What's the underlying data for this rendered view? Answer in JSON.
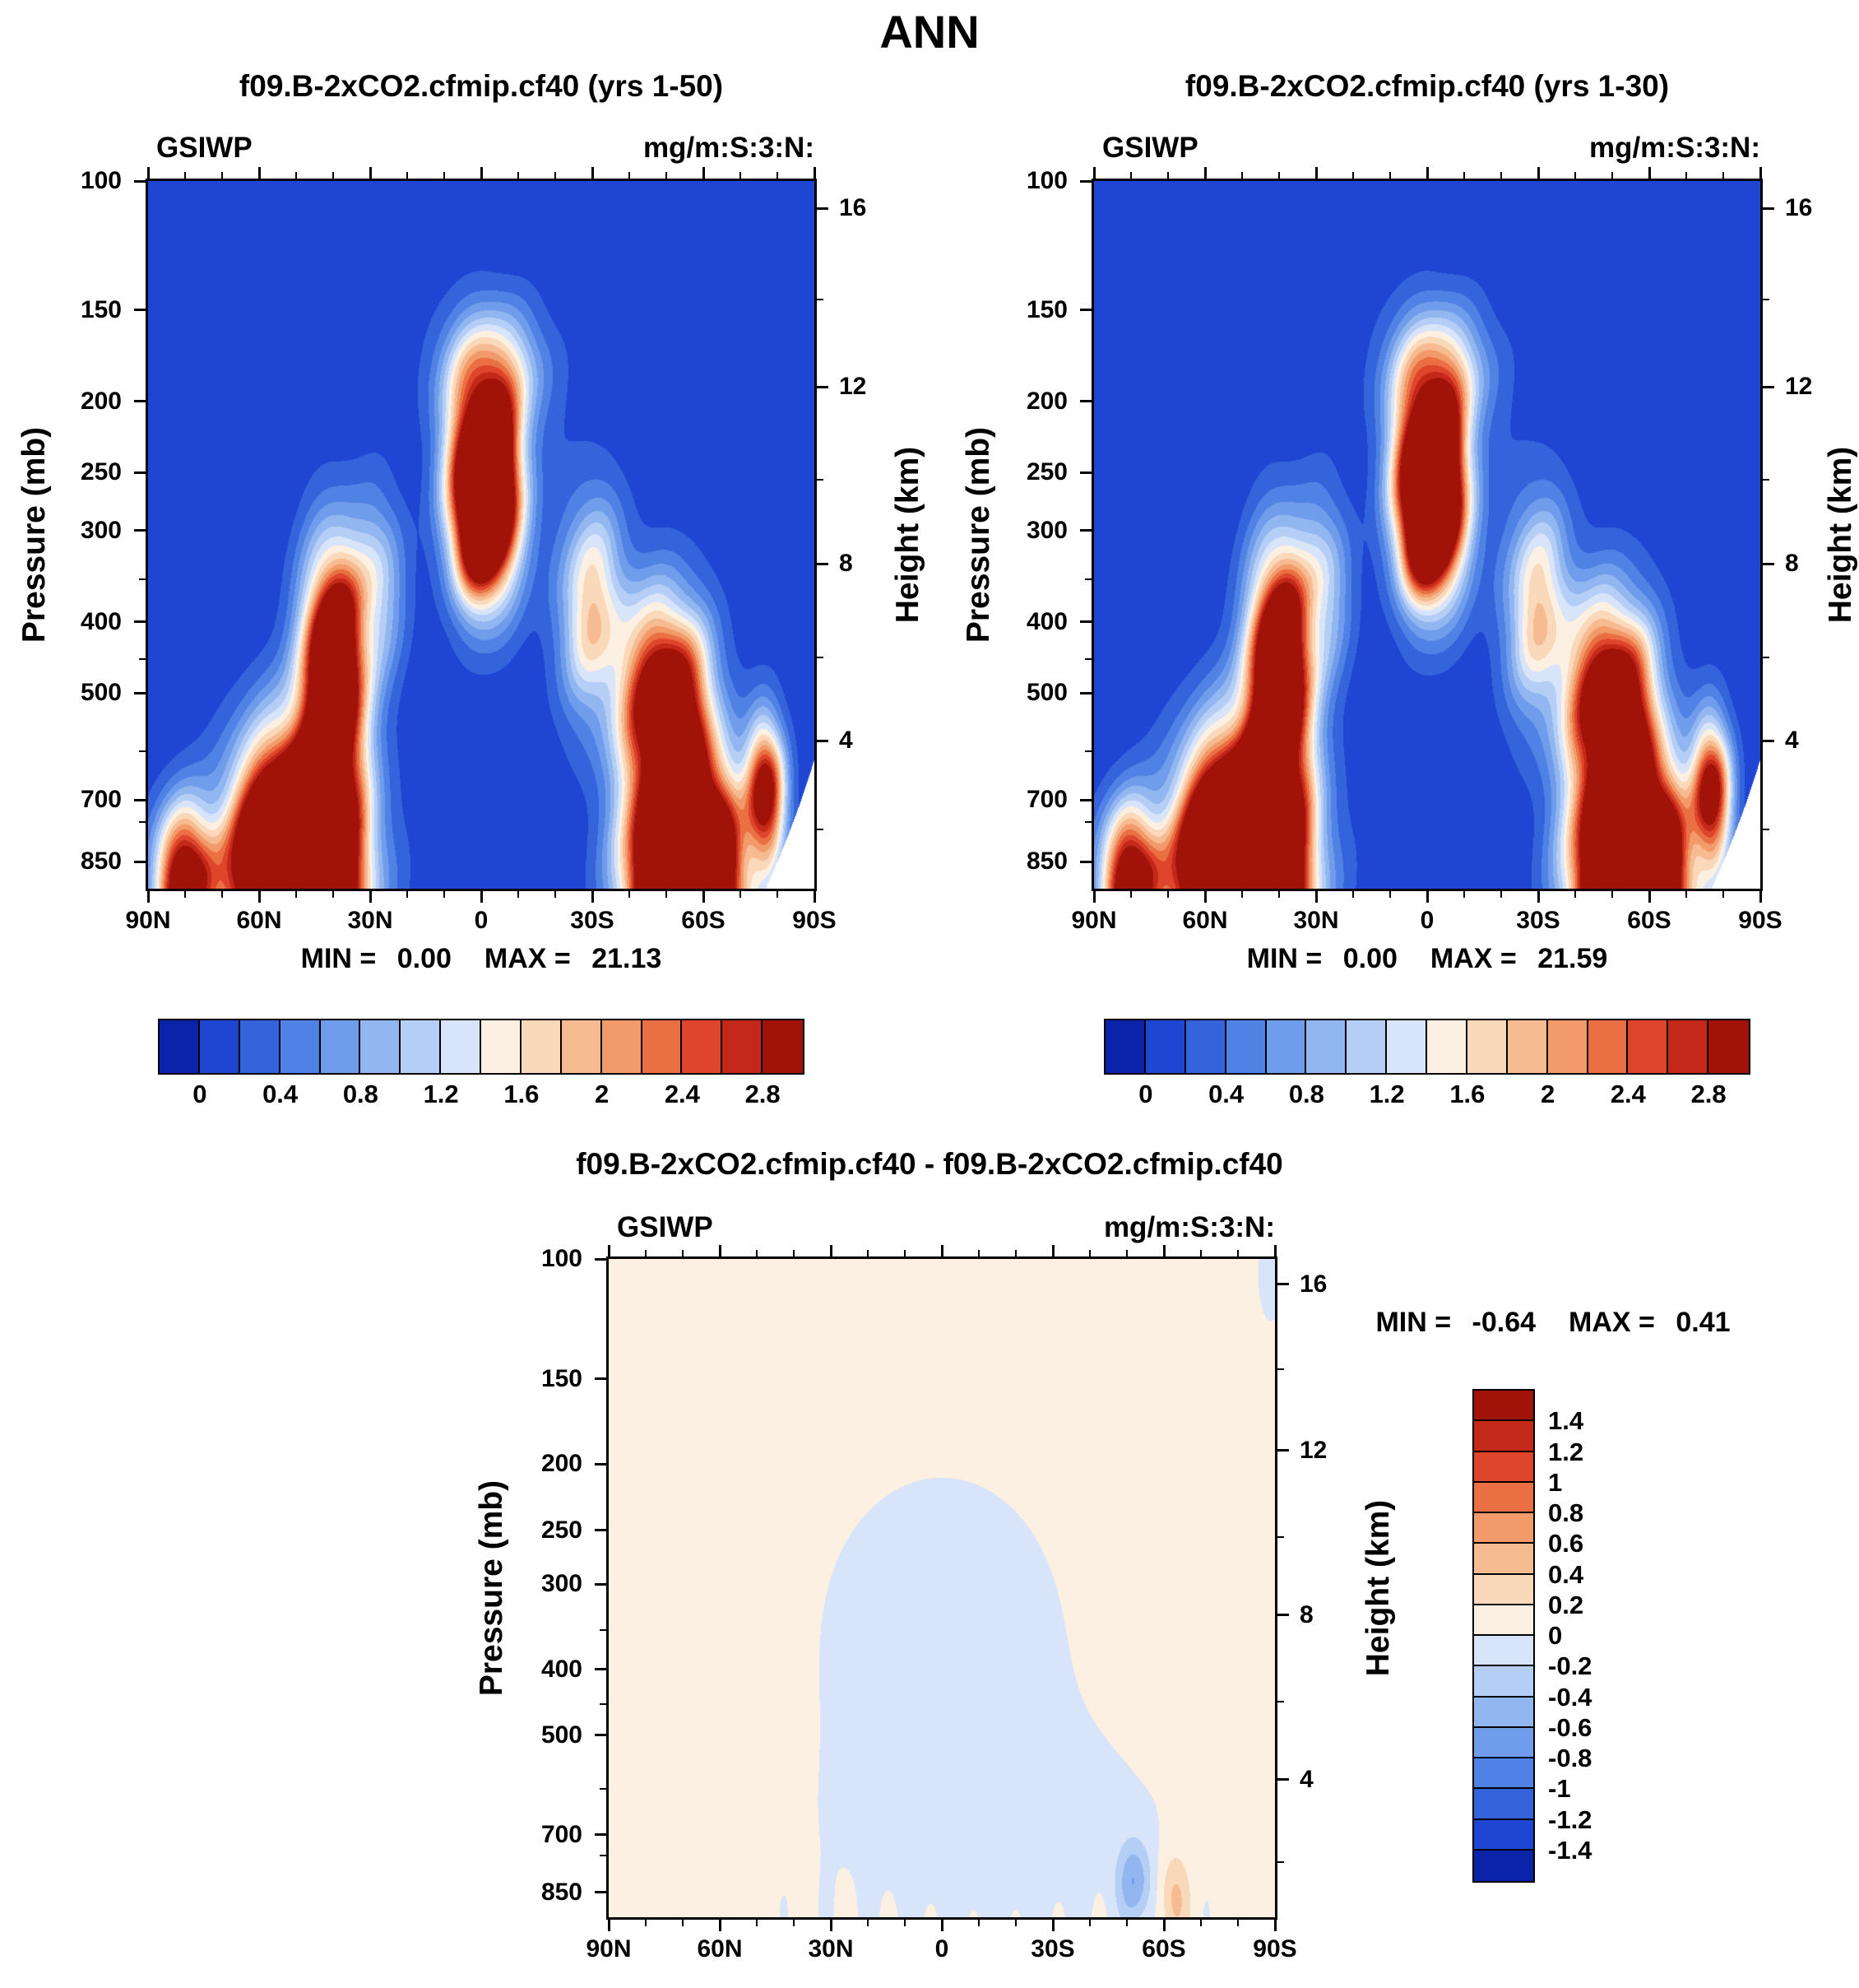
{
  "figure_title": "ANN",
  "axis": {
    "pressure_label": "Pressure (mb)",
    "height_label": "Height (km)",
    "pressure_range": [
      100,
      925
    ],
    "pressure_ticks": [
      100,
      150,
      200,
      250,
      300,
      400,
      500,
      700,
      850
    ],
    "pressure_minor_ticks": [
      350,
      450,
      600,
      750
    ],
    "height_ticks_km": [
      "16",
      "12",
      "8",
      "4"
    ],
    "height_ticks_p": [
      109,
      191,
      333,
      581
    ],
    "height_minor_ticks_p": [
      145,
      256,
      447,
      768
    ],
    "lat_tick_labels": [
      "90N",
      "60N",
      "30N",
      "0",
      "30S",
      "60S",
      "90S"
    ],
    "lat_tick_values": [
      90,
      60,
      30,
      0,
      -30,
      -60,
      -90
    ],
    "lat_minor_values": [
      80,
      70,
      50,
      40,
      20,
      10,
      -10,
      -20,
      -40,
      -50,
      -70,
      -80
    ]
  },
  "palette": [
    "#0a23a8",
    "#1e46d2",
    "#3563dc",
    "#5081e4",
    "#6f9ceb",
    "#92b6f0",
    "#b5cef5",
    "#d8e4fa",
    "#fcf0e2",
    "#fad8ba",
    "#f7bb92",
    "#f29a69",
    "#ea7044",
    "#de452a",
    "#c42818",
    "#a11309"
  ],
  "chart_data": [
    {
      "type": "heatmap",
      "title": "f09.B-2xCO2.cfmip.cf40 (yrs 1-50)",
      "variable": "GSIWP",
      "units": "mg/m:S:3:N:",
      "x_axis": "latitude 90N to 90S",
      "y_axis": "pressure 100-925 mb (log), height 0-16 km",
      "stats": {
        "min_text": "MIN = ",
        "min_value": "0.00",
        "max_text": "MAX = ",
        "max_value": "21.13"
      },
      "levels": [
        0,
        0.2,
        0.4,
        0.6,
        0.8,
        1,
        1.2,
        1.4,
        1.6,
        1.8,
        2,
        2.2,
        2.4,
        2.6,
        2.8
      ],
      "colorbar_labels": [
        "0",
        "0.4",
        "0.8",
        "1.2",
        "1.6",
        "2",
        "2.4",
        "2.8"
      ],
      "colorbar_label_positions": [
        1,
        3,
        5,
        7,
        9,
        11,
        13,
        15
      ],
      "field": {
        "background": 0.05,
        "noise": 0.12,
        "mask_antarctica": true,
        "blobs": [
          {
            "amp": 9.0,
            "lat": 50,
            "z": 1.0,
            "slat": 15,
            "sz": 2.6
          },
          {
            "amp": 5.0,
            "lat": 40,
            "z": 5.5,
            "slat": 8,
            "sz": 2.6
          },
          {
            "amp": 7.0,
            "lat": -1,
            "z": 9.6,
            "slat": 8.5,
            "sz": 2.1
          },
          {
            "amp": 1.6,
            "lat": -3,
            "z": 12.3,
            "slat": 13,
            "sz": 1.5
          },
          {
            "amp": 9.0,
            "lat": -55,
            "z": 0.8,
            "slat": 13,
            "sz": 2.4
          },
          {
            "amp": 4.0,
            "lat": -50,
            "z": 4.8,
            "slat": 11,
            "sz": 2.2
          },
          {
            "amp": 1.7,
            "lat": -30,
            "z": 7.0,
            "slat": 9,
            "sz": 2.4
          },
          {
            "amp": 1.1,
            "lat": 28,
            "z": 7.5,
            "slat": 7,
            "sz": 2.0
          },
          {
            "amp": 3.5,
            "lat": 80,
            "z": 0.8,
            "slat": 8,
            "sz": 1.6
          },
          {
            "amp": 3.2,
            "lat": -77,
            "z": 2.8,
            "slat": 5,
            "sz": 1.6
          }
        ]
      }
    },
    {
      "type": "heatmap",
      "title": "f09.B-2xCO2.cfmip.cf40 (yrs 1-30)",
      "variable": "GSIWP",
      "units": "mg/m:S:3:N:",
      "x_axis": "latitude 90N to 90S",
      "y_axis": "pressure 100-925 mb (log), height 0-16 km",
      "stats": {
        "min_text": "MIN = ",
        "min_value": "0.00",
        "max_text": "MAX = ",
        "max_value": "21.59"
      },
      "levels": [
        0,
        0.2,
        0.4,
        0.6,
        0.8,
        1,
        1.2,
        1.4,
        1.6,
        1.8,
        2,
        2.2,
        2.4,
        2.6,
        2.8
      ],
      "colorbar_labels": [
        "0",
        "0.4",
        "0.8",
        "1.2",
        "1.6",
        "2",
        "2.4",
        "2.8"
      ],
      "colorbar_label_positions": [
        1,
        3,
        5,
        7,
        9,
        11,
        13,
        15
      ],
      "field": {
        "background": 0.05,
        "noise": 0.13,
        "mask_antarctica": true,
        "blobs": [
          {
            "amp": 9.2,
            "lat": 50,
            "z": 1.0,
            "slat": 15,
            "sz": 2.6
          },
          {
            "amp": 5.0,
            "lat": 40,
            "z": 5.5,
            "slat": 8,
            "sz": 2.6
          },
          {
            "amp": 7.2,
            "lat": -1,
            "z": 9.6,
            "slat": 8.5,
            "sz": 2.1
          },
          {
            "amp": 1.6,
            "lat": -3,
            "z": 12.3,
            "slat": 13,
            "sz": 1.5
          },
          {
            "amp": 9.0,
            "lat": -55,
            "z": 0.8,
            "slat": 13,
            "sz": 2.4
          },
          {
            "amp": 4.0,
            "lat": -50,
            "z": 4.8,
            "slat": 11,
            "sz": 2.2
          },
          {
            "amp": 1.7,
            "lat": -30,
            "z": 7.0,
            "slat": 9,
            "sz": 2.4
          },
          {
            "amp": 1.1,
            "lat": 28,
            "z": 7.5,
            "slat": 7,
            "sz": 2.0
          },
          {
            "amp": 3.5,
            "lat": 80,
            "z": 0.8,
            "slat": 8,
            "sz": 1.6
          },
          {
            "amp": 3.2,
            "lat": -77,
            "z": 2.8,
            "slat": 5,
            "sz": 1.6
          }
        ]
      }
    },
    {
      "type": "heatmap",
      "title": "f09.B-2xCO2.cfmip.cf40 - f09.B-2xCO2.cfmip.cf40",
      "variable": "GSIWP",
      "units": "mg/m:S:3:N:",
      "x_axis": "latitude 90N to 90S",
      "y_axis": "pressure 100-925 mb (log), height 0-16 km",
      "stats": {
        "min_text": "MIN = ",
        "min_value": "-0.64",
        "max_text": "MAX = ",
        "max_value": "0.41"
      },
      "levels": [
        -1.4,
        -1.2,
        -1,
        -0.8,
        -0.6,
        -0.4,
        -0.2,
        0,
        0.2,
        0.4,
        0.6,
        0.8,
        1,
        1.2,
        1.4
      ],
      "colorbar_labels": [
        "1.4",
        "1.2",
        "1",
        "0.8",
        "0.6",
        "0.4",
        "0.2",
        "0",
        "-0.2",
        "-0.4",
        "-0.6",
        "-0.8",
        "-1",
        "-1.2",
        "-1.4"
      ],
      "field": {
        "background": 0.07,
        "noise": 0,
        "mask_antarctica": false,
        "surface_wave": {
          "amp": 0.055,
          "k": 0.55,
          "z0": 0.5,
          "sz": 1.1
        },
        "blobs": [
          {
            "amp": -0.22,
            "lat": 0,
            "z": 7.5,
            "slat": 30,
            "sz": 3.6
          },
          {
            "amp": -0.16,
            "lat": -15,
            "z": 2.5,
            "slat": 48,
            "sz": 3.0
          },
          {
            "amp": -0.6,
            "lat": -52,
            "z": 1.5,
            "slat": 4.5,
            "sz": 1.0
          },
          {
            "amp": 0.42,
            "lat": -63,
            "z": 1.1,
            "slat": 4,
            "sz": 1.1
          },
          {
            "amp": -0.25,
            "lat": -89,
            "z": 16.3,
            "slat": 3,
            "sz": 1.0
          }
        ]
      }
    }
  ]
}
